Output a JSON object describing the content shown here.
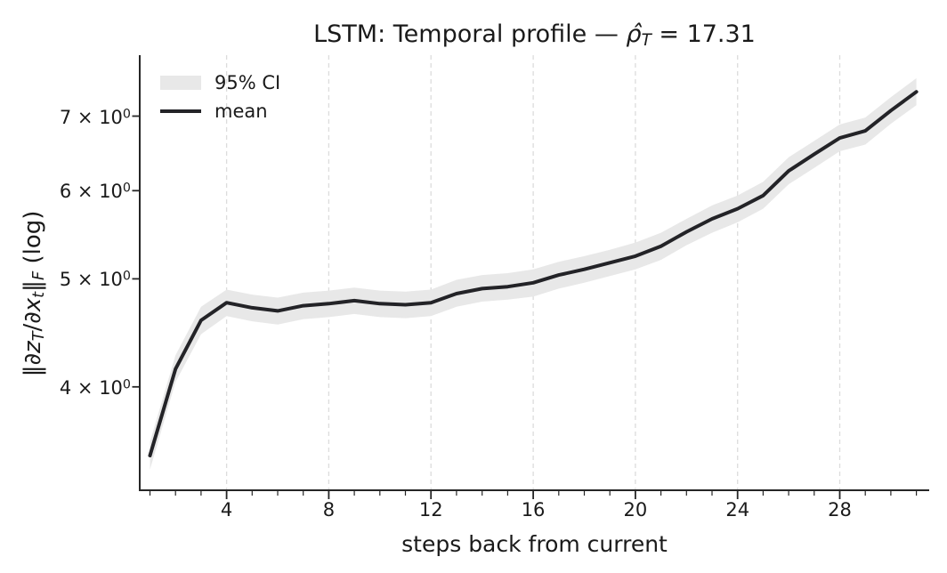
{
  "title_parts": [
    {
      "t": "LSTM: Temporal profile — "
    },
    {
      "t": "ρ̂",
      "i": true
    },
    {
      "t": "T",
      "i": true,
      "sub": true
    },
    {
      "t": " = 17.31"
    }
  ],
  "xlabel": "steps back from current",
  "ylabel_parts": [
    {
      "t": "‖"
    },
    {
      "t": "∂z",
      "i": true
    },
    {
      "t": "T",
      "i": true,
      "sub": true
    },
    {
      "t": "/"
    },
    {
      "t": "∂x",
      "i": true
    },
    {
      "t": "t",
      "i": true,
      "sub": true
    },
    {
      "t": "‖"
    },
    {
      "t": "F",
      "i": true,
      "sub": true
    },
    {
      "t": " (log)"
    }
  ],
  "legend": {
    "ci_label": "95% CI",
    "mean_label": "mean"
  },
  "colors": {
    "text": "#1a1a1a",
    "line": "#232327",
    "band": "#e8e8e8",
    "grid": "#dcdcdc",
    "axis": "#262626"
  },
  "chart_data": {
    "type": "line",
    "title": "LSTM: Temporal profile — ρ̂_T = 17.31",
    "xlabel": "steps back from current",
    "ylabel": "‖∂z_T/∂x_t‖_F (log)",
    "yscale": "log",
    "grid": "vertical-dashed-at-major-xticks",
    "legend_position": "upper left",
    "legend_entries": [
      "95% CI",
      "mean"
    ],
    "xlim": [
      0.6,
      31.5
    ],
    "ylim": [
      3.23,
      7.94
    ],
    "xticks": [
      4,
      8,
      12,
      16,
      20,
      24,
      28
    ],
    "xtick_labels": [
      "4",
      "8",
      "12",
      "16",
      "20",
      "24",
      "28"
    ],
    "minor_xtick_step": 1,
    "yticks": [
      4,
      5,
      6,
      7
    ],
    "ytick_labels": [
      {
        "base": "4 × 10",
        "sup": "0"
      },
      {
        "base": "5 × 10",
        "sup": "0"
      },
      {
        "base": "6 × 10",
        "sup": "0"
      },
      {
        "base": "7 × 10",
        "sup": "0"
      }
    ],
    "x": [
      1,
      2,
      3,
      4,
      5,
      6,
      7,
      8,
      9,
      10,
      11,
      12,
      13,
      14,
      15,
      16,
      17,
      18,
      19,
      20,
      21,
      22,
      23,
      24,
      25,
      26,
      27,
      28,
      29,
      30,
      31
    ],
    "series": [
      {
        "name": "mean",
        "values": [
          3.47,
          4.15,
          4.59,
          4.76,
          4.71,
          4.68,
          4.73,
          4.75,
          4.78,
          4.75,
          4.74,
          4.76,
          4.85,
          4.9,
          4.92,
          4.96,
          5.04,
          5.1,
          5.17,
          5.24,
          5.35,
          5.51,
          5.66,
          5.78,
          5.94,
          6.25,
          6.47,
          6.69,
          6.79,
          7.08,
          7.36
        ]
      },
      {
        "name": "95% CI lower",
        "values": [
          3.37,
          4.04,
          4.46,
          4.63,
          4.58,
          4.55,
          4.6,
          4.62,
          4.65,
          4.62,
          4.61,
          4.63,
          4.72,
          4.77,
          4.79,
          4.82,
          4.9,
          4.96,
          5.03,
          5.1,
          5.2,
          5.36,
          5.5,
          5.62,
          5.78,
          6.08,
          6.29,
          6.51,
          6.6,
          6.89,
          7.16
        ]
      },
      {
        "name": "95% CI upper",
        "values": [
          3.57,
          4.27,
          4.72,
          4.89,
          4.84,
          4.81,
          4.86,
          4.88,
          4.91,
          4.88,
          4.87,
          4.89,
          4.99,
          5.04,
          5.06,
          5.1,
          5.18,
          5.24,
          5.31,
          5.39,
          5.5,
          5.66,
          5.82,
          5.94,
          6.11,
          6.43,
          6.65,
          6.88,
          6.98,
          7.28,
          7.57
        ]
      }
    ]
  }
}
